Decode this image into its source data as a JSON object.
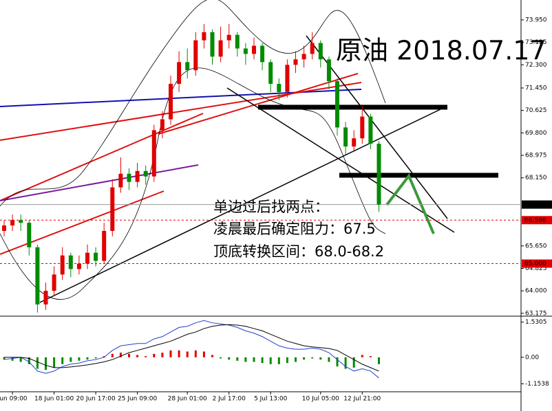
{
  "chart_data": {
    "type": "candlestick",
    "title": "原油 2018.07.17",
    "annotations": [
      "单边过后找两点：",
      "凌晨最后确定阻力：67.5",
      "顶底转换区间：68.0-68.2"
    ],
    "categories": [
      null,
      "Jun 09:00",
      null,
      null,
      null,
      null,
      "18 Jun 01:00",
      null,
      null,
      null,
      null,
      "20 Jun 17:00",
      null,
      null,
      null,
      null,
      "25 Jun 09:00",
      null,
      null,
      null,
      null,
      null,
      "28 Jun 01:00",
      null,
      null,
      null,
      null,
      "2 Jul 17:00",
      null,
      null,
      null,
      null,
      "5 Jul 13:00",
      null,
      null,
      null,
      null,
      null,
      "10 Jul 05:00",
      null,
      null,
      null,
      null,
      "12 Jul 21:00",
      null,
      null
    ],
    "open": [
      66.2,
      66.4,
      66.6,
      66.5,
      65.6,
      63.5,
      64.0,
      64.6,
      65.3,
      64.8,
      65.0,
      65.4,
      65.1,
      66.2,
      67.8,
      68.3,
      68.0,
      68.4,
      68.2,
      69.9,
      70.3,
      71.6,
      72.4,
      72.1,
      73.2,
      73.5,
      72.6,
      73.2,
      73.4,
      72.9,
      72.7,
      73.0,
      72.4,
      71.6,
      71.3,
      72.3,
      72.5,
      72.7,
      73.1,
      72.5,
      71.7,
      70.0,
      69.3,
      69.6,
      70.4,
      69.4
    ],
    "high": [
      66.6,
      66.8,
      66.8,
      66.6,
      65.7,
      64.3,
      64.9,
      65.6,
      65.4,
      65.3,
      65.7,
      65.6,
      66.5,
      68.1,
      68.9,
      68.5,
      68.7,
      68.6,
      70.1,
      70.6,
      71.9,
      72.8,
      72.9,
      73.5,
      73.8,
      73.6,
      73.7,
      73.8,
      73.5,
      73.1,
      73.3,
      73.1,
      72.5,
      71.8,
      72.5,
      72.8,
      73.0,
      73.5,
      73.2,
      72.6,
      71.8,
      70.2,
      69.9,
      70.8,
      70.5,
      69.5
    ],
    "low": [
      66.0,
      66.2,
      66.2,
      65.3,
      63.2,
      63.3,
      63.8,
      64.4,
      64.5,
      64.6,
      64.8,
      64.9,
      65.0,
      66.0,
      67.6,
      67.7,
      67.8,
      67.9,
      68.0,
      69.6,
      70.1,
      71.3,
      71.8,
      71.9,
      72.9,
      72.3,
      72.4,
      72.9,
      72.6,
      72.3,
      72.5,
      72.1,
      71.3,
      71.0,
      71.1,
      72.0,
      72.2,
      72.5,
      72.2,
      71.4,
      69.7,
      69.0,
      69.1,
      69.4,
      69.2,
      66.9
    ],
    "close": [
      66.4,
      66.6,
      66.5,
      65.6,
      63.5,
      64.0,
      64.6,
      65.3,
      64.8,
      65.0,
      65.4,
      65.1,
      66.2,
      67.8,
      68.3,
      68.0,
      68.4,
      68.2,
      69.9,
      70.3,
      71.6,
      72.4,
      72.1,
      73.2,
      73.5,
      72.6,
      73.2,
      73.4,
      72.9,
      72.7,
      73.0,
      72.4,
      71.6,
      71.3,
      72.3,
      72.5,
      72.7,
      73.1,
      72.5,
      71.7,
      70.0,
      69.3,
      69.6,
      70.4,
      69.4,
      67.168
    ],
    "up_color": "#e00000",
    "down_color": "#008c00",
    "ylim": [
      63.07,
      74.68
    ],
    "yticks": [
      {
        "value": 73.95,
        "label": "73.950"
      },
      {
        "value": 73.125,
        "label": "73.125"
      },
      {
        "value": 72.3,
        "label": "72.300"
      },
      {
        "value": 71.45,
        "label": "71.450"
      },
      {
        "value": 70.625,
        "label": "70.625"
      },
      {
        "value": 69.8,
        "label": "69.800"
      },
      {
        "value": 68.975,
        "label": "68.975"
      },
      {
        "value": 68.15,
        "label": "68.150"
      },
      {
        "value": 65.65,
        "label": "65.650"
      },
      {
        "value": 64.825,
        "label": "64.825"
      },
      {
        "value": 64.0,
        "label": "64.000"
      },
      {
        "value": 63.175,
        "label": "63.175"
      }
    ],
    "price_lines": [
      67.168,
      66.596,
      {
        "value": 65,
        "label": "65.000"
      }
    ],
    "price_line_colors": [
      "#999999",
      "#e00000",
      "#e00000"
    ],
    "macd": {
      "ylim": [
        -1.5,
        1.73
      ],
      "yticks": [
        1.5305,
        {
          "value": 0,
          "label": "0.00"
        },
        -1.1538
      ],
      "histogram": [
        -0.1,
        -0.15,
        -0.2,
        -0.3,
        -0.5,
        -0.55,
        -0.45,
        -0.3,
        -0.2,
        -0.15,
        -0.1,
        -0.05,
        0.05,
        0.15,
        0.2,
        0.15,
        0.1,
        0.05,
        0.15,
        0.2,
        0.3,
        0.3,
        0.25,
        0.3,
        0.25,
        0.1,
        -0.05,
        -0.1,
        -0.15,
        -0.2,
        -0.2,
        -0.25,
        -0.3,
        -0.3,
        -0.25,
        -0.2,
        -0.1,
        -0.05,
        -0.1,
        -0.2,
        -0.4,
        -0.5,
        -0.45,
        0.1,
        0.05,
        -0.3
      ],
      "series": [
        {
          "color": "#1f3fd0",
          "values": [
            -0.1,
            -0.05,
            0,
            -0.2,
            -0.6,
            -0.7,
            -0.6,
            -0.4,
            -0.3,
            -0.25,
            -0.15,
            -0.1,
            0,
            0.3,
            0.5,
            0.55,
            0.6,
            0.6,
            0.8,
            0.9,
            1.1,
            1.3,
            1.35,
            1.5,
            1.6,
            1.5,
            1.45,
            1.4,
            1.3,
            1.15,
            1.05,
            0.9,
            0.7,
            0.5,
            0.4,
            0.35,
            0.35,
            0.4,
            0.35,
            0.2,
            -0.1,
            -0.4,
            -0.6,
            -0.5,
            -0.6,
            -0.9
          ]
        },
        {
          "color": "#000000",
          "values": [
            0,
            0,
            0,
            -0.05,
            -0.2,
            -0.35,
            -0.45,
            -0.45,
            -0.42,
            -0.38,
            -0.33,
            -0.27,
            -0.2,
            -0.1,
            0.05,
            0.2,
            0.3,
            0.4,
            0.5,
            0.6,
            0.7,
            0.85,
            1.0,
            1.1,
            1.25,
            1.35,
            1.4,
            1.42,
            1.4,
            1.35,
            1.25,
            1.15,
            1.0,
            0.85,
            0.7,
            0.6,
            0.5,
            0.45,
            0.42,
            0.38,
            0.3,
            0.1,
            -0.1,
            -0.3,
            -0.45,
            -0.6
          ]
        }
      ]
    }
  }
}
